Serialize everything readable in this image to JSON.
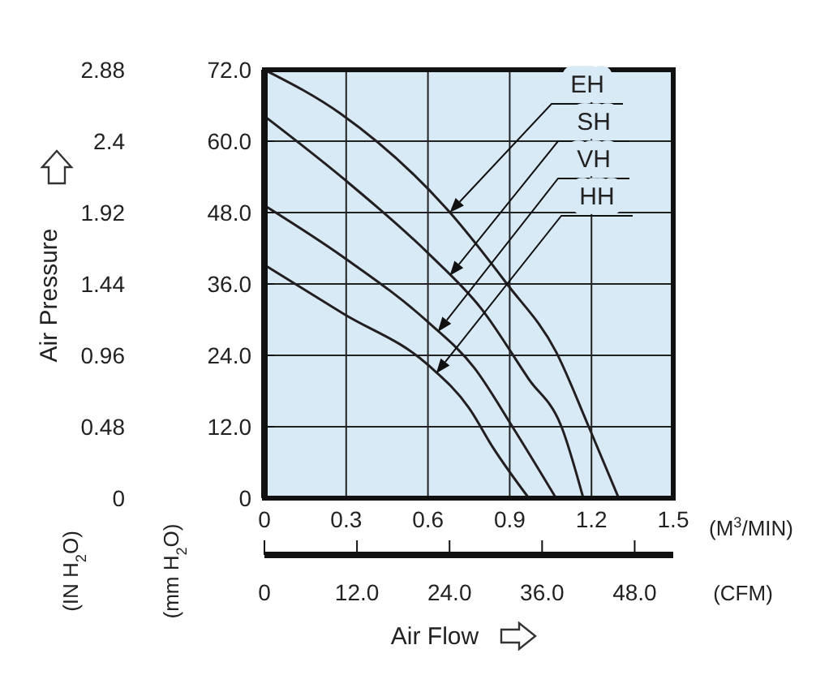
{
  "chart_data": {
    "type": "line",
    "xlabel": "Air Flow",
    "ylabel": "Air Pressure",
    "y2label": "(mm H$_{2}$O)",
    "x2label": "(CFM)",
    "annotations": [
      "(M$^{3}$/MIN)",
      "(IN H$_{2}$O)"
    ],
    "xlim": [
      0,
      1.5
    ],
    "xticks": [
      0,
      0.3,
      0.6,
      0.9,
      1.2,
      1.5
    ],
    "ylim": [
      0,
      2.88
    ],
    "yticks": [
      0,
      0.48,
      0.96,
      1.44,
      1.92,
      2.4,
      2.88
    ],
    "y2lim": [
      0,
      72
    ],
    "y2ticks": [
      {
        "value": 0,
        "label": "0"
      },
      {
        "value": 12,
        "label": "12.0"
      },
      {
        "value": 24,
        "label": "24.0"
      },
      {
        "value": 36,
        "label": "36.0"
      },
      {
        "value": 48,
        "label": "48.0"
      },
      {
        "value": 60,
        "label": "60.0"
      },
      {
        "value": 72,
        "label": "72.0"
      }
    ],
    "x2lim": [
      0,
      53
    ],
    "x2ticks": [
      {
        "value": 0,
        "label": "0"
      },
      {
        "value": 12,
        "label": "12.0"
      },
      {
        "value": 24,
        "label": "24.0"
      },
      {
        "value": 36,
        "label": "36.0"
      },
      {
        "value": 48,
        "label": "48.0"
      }
    ],
    "grid": true,
    "marker": "none",
    "line_style": "solid",
    "series": [
      {
        "name": "EH",
        "color": "#231f20",
        "axis": "y2",
        "x": [
          0,
          0.28,
          0.675,
          0.89,
          1.07,
          1.19,
          1.3
        ],
        "values": [
          72,
          64.6,
          48.3,
          36,
          24.6,
          12,
          0
        ]
      },
      {
        "name": "SH",
        "color": "#231f20",
        "axis": "y2",
        "x": [
          0,
          0.29,
          0.6,
          0.795,
          0.97,
          1.09,
          1.17
        ],
        "values": [
          64.2,
          53.7,
          41.2,
          31.9,
          20,
          12,
          0
        ]
      },
      {
        "name": "VH",
        "color": "#231f20",
        "axis": "y2",
        "x": [
          0,
          0.29,
          0.6,
          0.77,
          0.91,
          1.07
        ],
        "values": [
          49.2,
          40.5,
          29.6,
          21.9,
          12,
          0
        ]
      },
      {
        "name": "HH",
        "color": "#231f20",
        "axis": "y2",
        "x": [
          0,
          0.29,
          0.6,
          0.75,
          0.84,
          0.97
        ],
        "values": [
          39.2,
          31,
          22.4,
          15.2,
          8.4,
          0
        ]
      }
    ]
  }
}
